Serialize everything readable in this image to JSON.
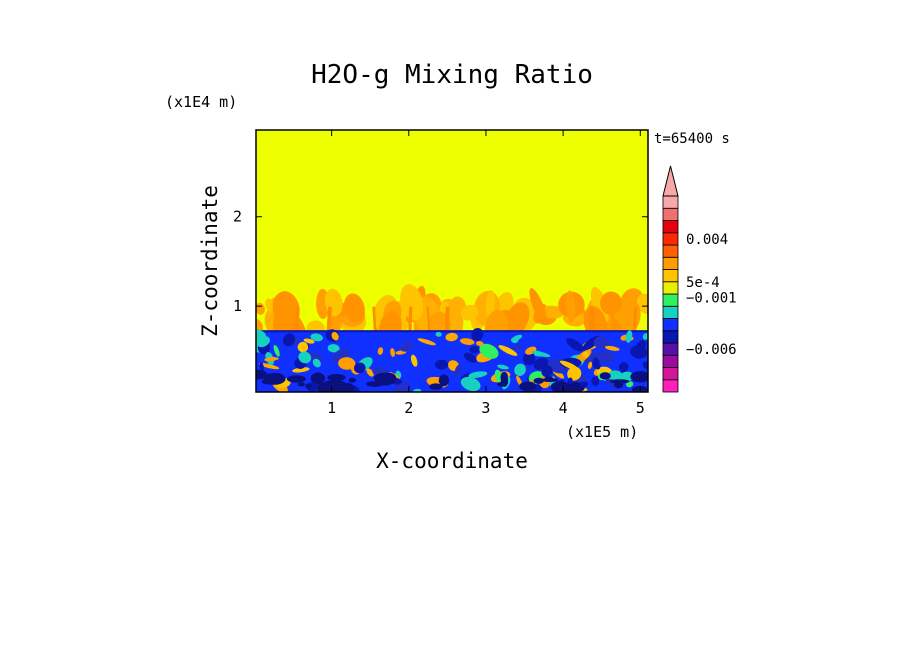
{
  "chart_data": {
    "type": "heatmap",
    "title": "H2O-g Mixing Ratio",
    "xlabel": "X-coordinate",
    "ylabel": "Z-coordinate",
    "x_scale_label": "(x1E5 m)",
    "y_scale_label": "(x1E4 m)",
    "time_label": "t=65400 s",
    "x_ticks": [
      "1",
      "2",
      "3",
      "4",
      "5"
    ],
    "x_tick_values": [
      1,
      2,
      3,
      4,
      5
    ],
    "y_ticks": [
      "1",
      "2"
    ],
    "y_tick_values": [
      1,
      2
    ],
    "xlim": [
      0.02,
      5.1
    ],
    "ylim": [
      0.04,
      2.97
    ],
    "colorbar": {
      "colors": [
        "#ff1fbf",
        "#d4149a",
        "#9c0aa0",
        "#5a10a8",
        "#0a16b0",
        "#1030ff",
        "#18d0c0",
        "#30f060",
        "#e8f000",
        "#ffc400",
        "#ff9c00",
        "#ff6000",
        "#ff2800",
        "#e80010",
        "#f07070",
        "#f8a8a8"
      ],
      "labels": [
        {
          "text": "0.004",
          "level": 12.5
        },
        {
          "text": "5e-4",
          "level": 9.0
        },
        {
          "text": "−0.001",
          "level": 7.7
        },
        {
          "text": "−0.006",
          "level": 3.5
        }
      ],
      "extend_max": true
    },
    "field": {
      "upper_region_color": "#eeff00",
      "lower_layer_top_z": 0.73,
      "transition_top_z": 1.05
    }
  }
}
